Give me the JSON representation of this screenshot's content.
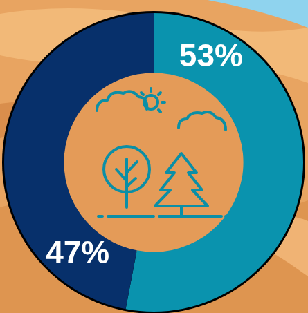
{
  "chart_data": {
    "type": "doughnut",
    "values": [
      53,
      47
    ],
    "value_labels": [
      "53%",
      "47%"
    ],
    "colors": [
      "#0A93AE",
      "#07306B"
    ],
    "data_labels": true
  }
}
